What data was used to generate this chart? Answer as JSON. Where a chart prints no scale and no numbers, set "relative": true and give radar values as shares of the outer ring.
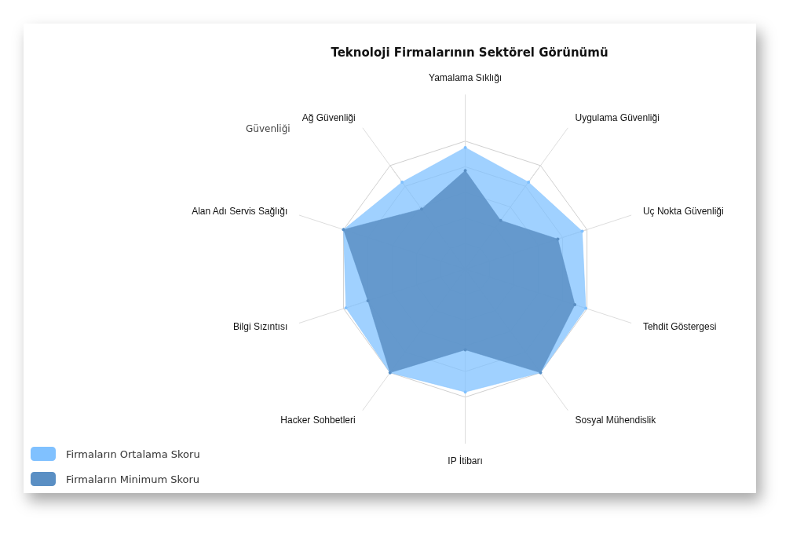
{
  "chart_data": {
    "type": "radar",
    "title": "Teknoloji Firmalarının Sektörel Görünümü",
    "relative": true,
    "legend": "bottom left",
    "marker": "circle",
    "categories": [
      "Yamalama Sıklığı",
      "Uygulama Güvenliği",
      "Uç Nokta Güvenliği",
      "Tehdit Göstergesi",
      "Sosyal Mühendislik",
      "IP İtibarı",
      "Hacker Sohbetleri",
      "Bilgi Sızıntısı",
      "Alan Adı Servis Sağlığı",
      "Ağ Güvenliği"
    ],
    "series": [
      {
        "name": "Firmaların Ortalama Skoru",
        "color": "#80c1ff",
        "values": [
          0.95,
          0.84,
          0.96,
          0.99,
          1.0,
          0.96,
          1.0,
          0.98,
          1.0,
          0.84
        ]
      },
      {
        "name": "Firmaların Minimum Skoru",
        "color": "#5a8fc4",
        "values": [
          0.77,
          0.47,
          0.76,
          0.9,
          1.0,
          0.63,
          1.0,
          0.8,
          1.0,
          0.58
        ]
      }
    ],
    "annotations": [
      "Güvenliği"
    ]
  }
}
